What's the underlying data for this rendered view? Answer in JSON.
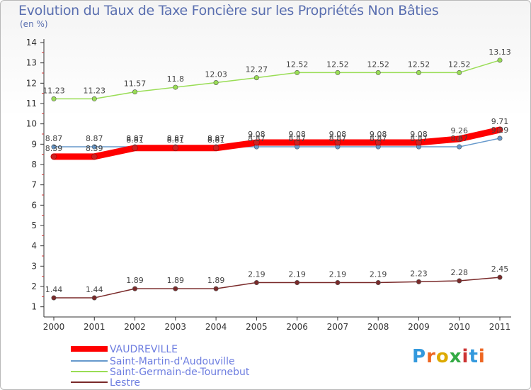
{
  "chart_data": {
    "type": "line",
    "title": "Evolution du Taux de Taxe Foncière sur les Propriétés Non Bâties",
    "subtitle": "(en %)",
    "categories": [
      "2000",
      "2001",
      "2002",
      "2003",
      "2004",
      "2005",
      "2006",
      "2007",
      "2008",
      "2009",
      "2010",
      "2011"
    ],
    "ylim": [
      0.5,
      14
    ],
    "yticks": [
      1,
      2,
      3,
      4,
      5,
      6,
      7,
      8,
      9,
      10,
      11,
      12,
      13,
      14
    ],
    "series": [
      {
        "name": "VAUDREVILLE",
        "color": "#ff0000",
        "values": [
          8.39,
          8.39,
          8.81,
          8.81,
          8.81,
          9.08,
          9.08,
          9.08,
          9.08,
          9.08,
          9.26,
          9.71
        ],
        "labels": [
          "8.39",
          "8.39",
          "8.81",
          "8.81",
          "8.81",
          "9.08",
          "9.08",
          "9.08",
          "9.08",
          "9.08",
          "9.26",
          "9.71"
        ]
      },
      {
        "name": "Saint-Martin-d'Audouville",
        "color": "#6699cc",
        "values": [
          8.87,
          8.87,
          8.87,
          8.87,
          8.87,
          8.87,
          8.87,
          8.87,
          8.87,
          8.87,
          8.87,
          9.29
        ],
        "labels": [
          "8.87",
          "8.87",
          "8.87",
          "8.87",
          "8.87",
          "8.87",
          "8.87",
          "8.87",
          "8.87",
          "8.87",
          "8.87",
          "9.29"
        ]
      },
      {
        "name": "Saint-Germain-de-Tournebut",
        "color": "#99dd55",
        "values": [
          11.23,
          11.23,
          11.57,
          11.8,
          12.03,
          12.27,
          12.52,
          12.52,
          12.52,
          12.52,
          12.52,
          13.13
        ],
        "labels": [
          "11.23",
          "11.23",
          "11.57",
          "11.8",
          "12.03",
          "12.27",
          "12.52",
          "12.52",
          "12.52",
          "12.52",
          "12.52",
          "13.13"
        ]
      },
      {
        "name": "Lestre",
        "color": "#7a2a2a",
        "values": [
          1.44,
          1.44,
          1.89,
          1.89,
          1.89,
          2.19,
          2.19,
          2.19,
          2.19,
          2.23,
          2.28,
          2.45
        ],
        "labels": [
          "1.44",
          "1.44",
          "1.89",
          "1.89",
          "1.89",
          "2.19",
          "2.19",
          "2.19",
          "2.19",
          "2.23",
          "2.28",
          "2.45"
        ]
      }
    ]
  },
  "logo": {
    "letters": [
      "P",
      "r",
      "o",
      "x",
      "i",
      "t",
      "i"
    ],
    "colors": [
      "#3399dd",
      "#ee6622",
      "#ddaa00",
      "#33aa44",
      "#cc3333",
      "#3399dd",
      "#ee6622"
    ]
  }
}
